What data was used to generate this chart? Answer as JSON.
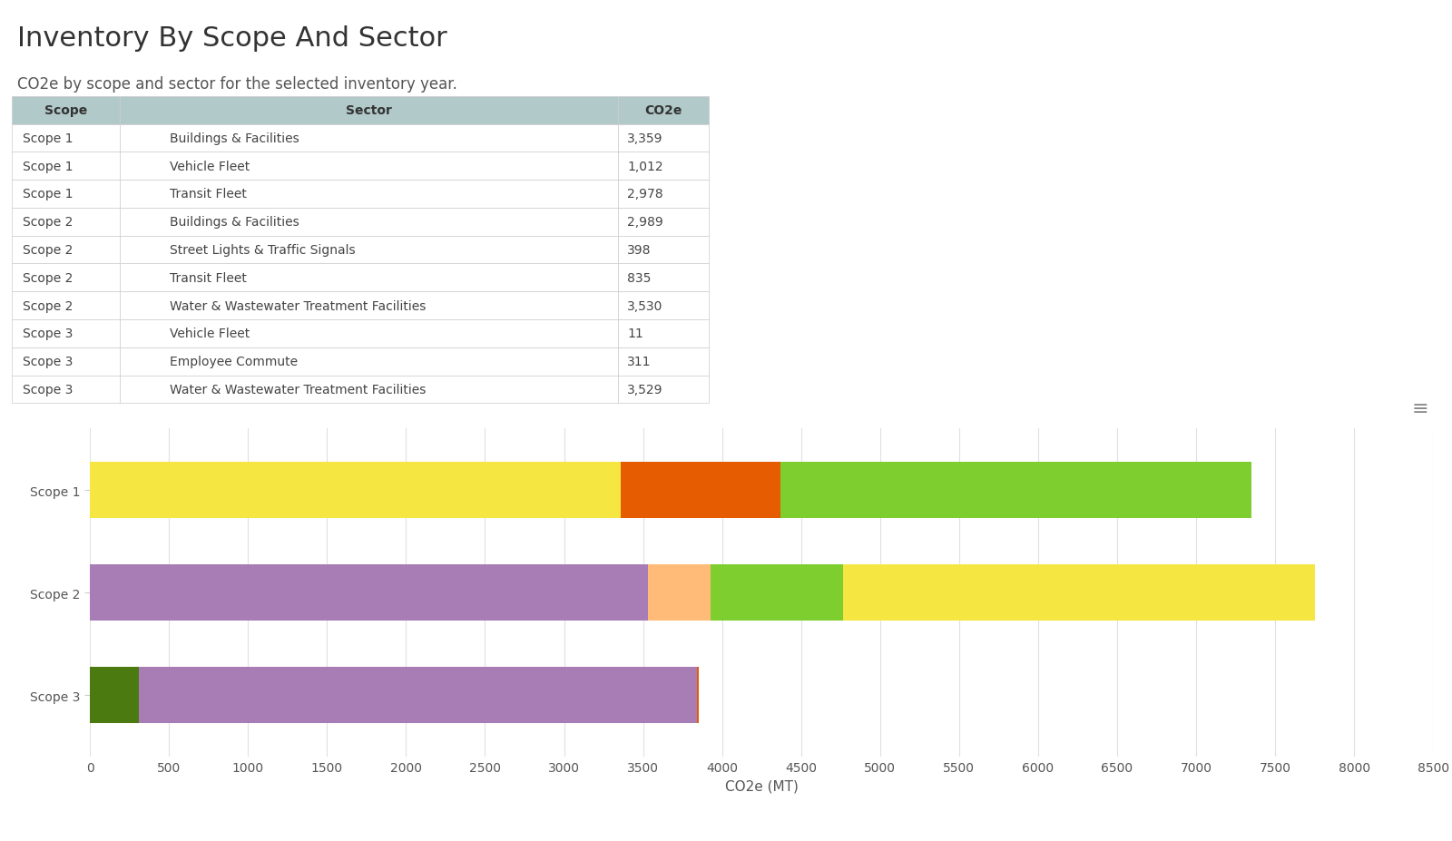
{
  "title": "Inventory By Scope And Sector",
  "subtitle": "CO2e by scope and sector for the selected inventory year.",
  "xlabel": "CO2e (MT)",
  "scopes": [
    "Scope 1",
    "Scope 2",
    "Scope 3"
  ],
  "table_data": [
    {
      "scope": "Scope 1",
      "sector": "Buildings & Facilities",
      "co2e": 3359
    },
    {
      "scope": "Scope 1",
      "sector": "Vehicle Fleet",
      "co2e": 1012
    },
    {
      "scope": "Scope 1",
      "sector": "Transit Fleet",
      "co2e": 2978
    },
    {
      "scope": "Scope 2",
      "sector": "Buildings & Facilities",
      "co2e": 2989
    },
    {
      "scope": "Scope 2",
      "sector": "Street Lights & Traffic Signals",
      "co2e": 398
    },
    {
      "scope": "Scope 2",
      "sector": "Transit Fleet",
      "co2e": 835
    },
    {
      "scope": "Scope 2",
      "sector": "Water & Wastewater Treatment Facilities",
      "co2e": 3530
    },
    {
      "scope": "Scope 3",
      "sector": "Vehicle Fleet",
      "co2e": 11
    },
    {
      "scope": "Scope 3",
      "sector": "Employee Commute",
      "co2e": 311
    },
    {
      "scope": "Scope 3",
      "sector": "Water & Wastewater Treatment Facilities",
      "co2e": 3529
    }
  ],
  "sector_colors": {
    "Buildings & Facilities": "#f5e642",
    "Vehicle Fleet": "#e65c00",
    "Transit Fleet": "#7dce2e",
    "Street Lights & Traffic Signals": "#ffbb77",
    "Water & Wastewater Treatment Facilities": "#a87cb5",
    "Employee Commute": "#4a7a10"
  },
  "scope_sectors": {
    "Scope 1": [
      [
        "Buildings & Facilities",
        3359
      ],
      [
        "Vehicle Fleet",
        1012
      ],
      [
        "Transit Fleet",
        2978
      ]
    ],
    "Scope 2": [
      [
        "Water & Wastewater Treatment Facilities",
        3530
      ],
      [
        "Street Lights & Traffic Signals",
        398
      ],
      [
        "Transit Fleet",
        835
      ],
      [
        "Buildings & Facilities",
        2989
      ]
    ],
    "Scope 3": [
      [
        "Employee Commute",
        311
      ],
      [
        "Water & Wastewater Treatment Facilities",
        3529
      ],
      [
        "Vehicle Fleet",
        11
      ]
    ]
  },
  "legend_order": [
    "Employee Commute",
    "Water & Wastewater Treatment Facilities",
    "Street Lights & Traffic Signals",
    "Transit Fleet",
    "Vehicle Fleet",
    "Buildings & Facilities"
  ],
  "xlim": [
    0,
    8500
  ],
  "xticks": [
    0,
    500,
    1000,
    1500,
    2000,
    2500,
    3000,
    3500,
    4000,
    4500,
    5000,
    5500,
    6000,
    6500,
    7000,
    7500,
    8000,
    8500
  ],
  "bar_height": 0.55,
  "background_color": "#ffffff",
  "grid_color": "#e0e0e0",
  "table_header_bg": "#b2c9c9",
  "table_border_color": "#cccccc",
  "title_fontsize": 22,
  "subtitle_fontsize": 12,
  "axis_label_fontsize": 11,
  "tick_fontsize": 10,
  "legend_fontsize": 11
}
